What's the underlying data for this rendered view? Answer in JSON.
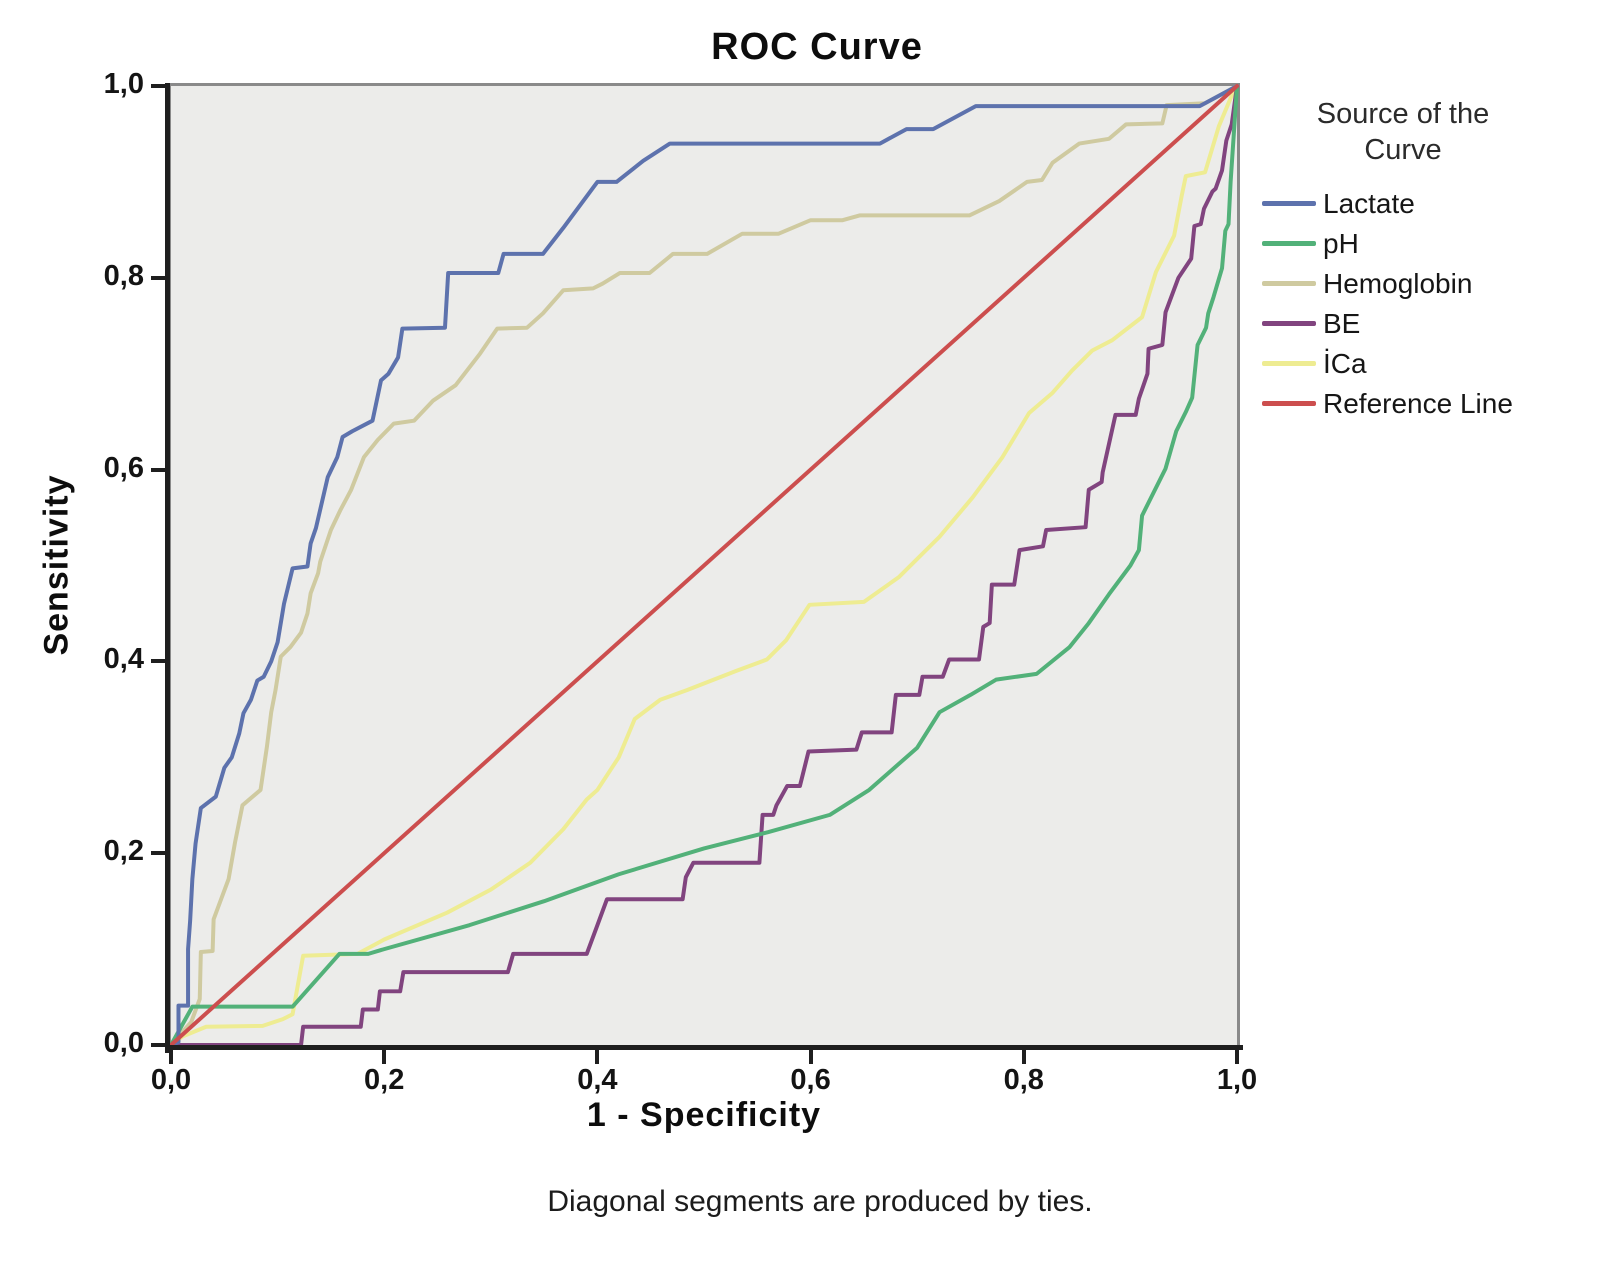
{
  "title": "ROC Curve",
  "caption": "Diagonal segments are produced by ties.",
  "legend": {
    "title_line1": "Source of the",
    "title_line2": "Curve"
  },
  "chart_data": {
    "type": "line",
    "title": "ROC Curve",
    "xlabel": "1 - Specificity",
    "ylabel": "Sensitivity",
    "xlim": [
      0,
      1
    ],
    "ylim": [
      0,
      1
    ],
    "grid": false,
    "legend_position": "right",
    "plot_background": "#ececea",
    "x_ticks": [
      {
        "value": 0.0,
        "label": "0,0"
      },
      {
        "value": 0.2,
        "label": "0,2"
      },
      {
        "value": 0.4,
        "label": "0,4"
      },
      {
        "value": 0.6,
        "label": "0,6"
      },
      {
        "value": 0.8,
        "label": "0,8"
      },
      {
        "value": 1.0,
        "label": "1,0"
      }
    ],
    "y_ticks": [
      {
        "value": 0.0,
        "label": "0,0"
      },
      {
        "value": 0.2,
        "label": "0,2"
      },
      {
        "value": 0.4,
        "label": "0,4"
      },
      {
        "value": 0.6,
        "label": "0,6"
      },
      {
        "value": 0.8,
        "label": "0,8"
      },
      {
        "value": 1.0,
        "label": "1,0"
      }
    ],
    "series": [
      {
        "name": "Lactate",
        "color": "#5d72ad",
        "points": [
          [
            0,
            0
          ],
          [
            0.007,
            0.003
          ],
          [
            0.007,
            0.041
          ],
          [
            0.016,
            0.041
          ],
          [
            0.016,
            0.1
          ],
          [
            0.018,
            0.13
          ],
          [
            0.02,
            0.173
          ],
          [
            0.023,
            0.21
          ],
          [
            0.028,
            0.247
          ],
          [
            0.042,
            0.259
          ],
          [
            0.05,
            0.289
          ],
          [
            0.057,
            0.3
          ],
          [
            0.064,
            0.325
          ],
          [
            0.068,
            0.346
          ],
          [
            0.075,
            0.36
          ],
          [
            0.081,
            0.38
          ],
          [
            0.087,
            0.384
          ],
          [
            0.094,
            0.4
          ],
          [
            0.1,
            0.42
          ],
          [
            0.106,
            0.46
          ],
          [
            0.114,
            0.497
          ],
          [
            0.128,
            0.499
          ],
          [
            0.131,
            0.523
          ],
          [
            0.136,
            0.539
          ],
          [
            0.147,
            0.592
          ],
          [
            0.156,
            0.613
          ],
          [
            0.161,
            0.634
          ],
          [
            0.17,
            0.64
          ],
          [
            0.189,
            0.651
          ],
          [
            0.197,
            0.693
          ],
          [
            0.204,
            0.7
          ],
          [
            0.213,
            0.717
          ],
          [
            0.217,
            0.747
          ],
          [
            0.257,
            0.748
          ],
          [
            0.26,
            0.805
          ],
          [
            0.307,
            0.805
          ],
          [
            0.312,
            0.825
          ],
          [
            0.349,
            0.825
          ],
          [
            0.368,
            0.852
          ],
          [
            0.396,
            0.894
          ],
          [
            0.4,
            0.9
          ],
          [
            0.418,
            0.9
          ],
          [
            0.443,
            0.922
          ],
          [
            0.468,
            0.94
          ],
          [
            0.665,
            0.94
          ],
          [
            0.69,
            0.955
          ],
          [
            0.715,
            0.955
          ],
          [
            0.755,
            0.979
          ],
          [
            0.965,
            0.979
          ],
          [
            1,
            1
          ]
        ]
      },
      {
        "name": "pH",
        "color": "#52b179",
        "points": [
          [
            0,
            0
          ],
          [
            0.02,
            0.04
          ],
          [
            0.114,
            0.04
          ],
          [
            0.158,
            0.095
          ],
          [
            0.185,
            0.095
          ],
          [
            0.2,
            0.1
          ],
          [
            0.28,
            0.125
          ],
          [
            0.35,
            0.15
          ],
          [
            0.42,
            0.178
          ],
          [
            0.5,
            0.205
          ],
          [
            0.56,
            0.222
          ],
          [
            0.618,
            0.24
          ],
          [
            0.655,
            0.266
          ],
          [
            0.7,
            0.31
          ],
          [
            0.721,
            0.347
          ],
          [
            0.75,
            0.365
          ],
          [
            0.774,
            0.381
          ],
          [
            0.812,
            0.387
          ],
          [
            0.843,
            0.415
          ],
          [
            0.861,
            0.44
          ],
          [
            0.88,
            0.47
          ],
          [
            0.9,
            0.5
          ],
          [
            0.908,
            0.516
          ],
          [
            0.911,
            0.552
          ],
          [
            0.933,
            0.601
          ],
          [
            0.943,
            0.64
          ],
          [
            0.952,
            0.66
          ],
          [
            0.958,
            0.675
          ],
          [
            0.963,
            0.73
          ],
          [
            0.971,
            0.748
          ],
          [
            0.973,
            0.763
          ],
          [
            0.978,
            0.78
          ],
          [
            0.986,
            0.81
          ],
          [
            0.989,
            0.849
          ],
          [
            0.992,
            0.856
          ],
          [
            0.994,
            0.9
          ],
          [
            0.997,
            0.95
          ],
          [
            1,
            1
          ]
        ]
      },
      {
        "name": "Hemoglobin",
        "color": "#cfcaa0",
        "points": [
          [
            0,
            0
          ],
          [
            0.019,
            0.024
          ],
          [
            0.027,
            0.048
          ],
          [
            0.028,
            0.097
          ],
          [
            0.039,
            0.098
          ],
          [
            0.04,
            0.131
          ],
          [
            0.054,
            0.173
          ],
          [
            0.06,
            0.211
          ],
          [
            0.067,
            0.25
          ],
          [
            0.084,
            0.266
          ],
          [
            0.09,
            0.311
          ],
          [
            0.094,
            0.347
          ],
          [
            0.098,
            0.37
          ],
          [
            0.103,
            0.405
          ],
          [
            0.112,
            0.415
          ],
          [
            0.122,
            0.43
          ],
          [
            0.128,
            0.45
          ],
          [
            0.131,
            0.471
          ],
          [
            0.138,
            0.492
          ],
          [
            0.14,
            0.504
          ],
          [
            0.15,
            0.537
          ],
          [
            0.159,
            0.558
          ],
          [
            0.169,
            0.579
          ],
          [
            0.181,
            0.613
          ],
          [
            0.194,
            0.631
          ],
          [
            0.209,
            0.648
          ],
          [
            0.228,
            0.651
          ],
          [
            0.246,
            0.672
          ],
          [
            0.267,
            0.688
          ],
          [
            0.29,
            0.721
          ],
          [
            0.306,
            0.747
          ],
          [
            0.334,
            0.748
          ],
          [
            0.349,
            0.763
          ],
          [
            0.368,
            0.787
          ],
          [
            0.396,
            0.789
          ],
          [
            0.405,
            0.794
          ],
          [
            0.421,
            0.805
          ],
          [
            0.449,
            0.805
          ],
          [
            0.471,
            0.825
          ],
          [
            0.503,
            0.825
          ],
          [
            0.536,
            0.846
          ],
          [
            0.57,
            0.846
          ],
          [
            0.6,
            0.86
          ],
          [
            0.63,
            0.86
          ],
          [
            0.646,
            0.865
          ],
          [
            0.749,
            0.865
          ],
          [
            0.777,
            0.88
          ],
          [
            0.803,
            0.9
          ],
          [
            0.817,
            0.902
          ],
          [
            0.827,
            0.92
          ],
          [
            0.852,
            0.94
          ],
          [
            0.88,
            0.945
          ],
          [
            0.896,
            0.96
          ],
          [
            0.93,
            0.961
          ],
          [
            0.934,
            0.98
          ],
          [
            0.97,
            0.982
          ],
          [
            1,
            1
          ]
        ]
      },
      {
        "name": "BE",
        "color": "#81447f",
        "points": [
          [
            0,
            0
          ],
          [
            0.122,
            0
          ],
          [
            0.124,
            0.019
          ],
          [
            0.178,
            0.019
          ],
          [
            0.18,
            0.037
          ],
          [
            0.194,
            0.037
          ],
          [
            0.196,
            0.056
          ],
          [
            0.215,
            0.056
          ],
          [
            0.218,
            0.076
          ],
          [
            0.316,
            0.076
          ],
          [
            0.321,
            0.095
          ],
          [
            0.39,
            0.095
          ],
          [
            0.4,
            0.125
          ],
          [
            0.409,
            0.152
          ],
          [
            0.48,
            0.152
          ],
          [
            0.483,
            0.175
          ],
          [
            0.49,
            0.19
          ],
          [
            0.552,
            0.19
          ],
          [
            0.555,
            0.24
          ],
          [
            0.565,
            0.24
          ],
          [
            0.568,
            0.25
          ],
          [
            0.578,
            0.27
          ],
          [
            0.59,
            0.27
          ],
          [
            0.598,
            0.306
          ],
          [
            0.643,
            0.308
          ],
          [
            0.648,
            0.326
          ],
          [
            0.676,
            0.326
          ],
          [
            0.68,
            0.365
          ],
          [
            0.702,
            0.365
          ],
          [
            0.705,
            0.384
          ],
          [
            0.724,
            0.384
          ],
          [
            0.73,
            0.402
          ],
          [
            0.758,
            0.402
          ],
          [
            0.762,
            0.436
          ],
          [
            0.768,
            0.44
          ],
          [
            0.77,
            0.48
          ],
          [
            0.791,
            0.48
          ],
          [
            0.796,
            0.516
          ],
          [
            0.818,
            0.52
          ],
          [
            0.821,
            0.537
          ],
          [
            0.858,
            0.54
          ],
          [
            0.861,
            0.579
          ],
          [
            0.873,
            0.587
          ],
          [
            0.874,
            0.597
          ],
          [
            0.886,
            0.657
          ],
          [
            0.905,
            0.657
          ],
          [
            0.908,
            0.674
          ],
          [
            0.916,
            0.7
          ],
          [
            0.917,
            0.726
          ],
          [
            0.93,
            0.73
          ],
          [
            0.933,
            0.764
          ],
          [
            0.945,
            0.8
          ],
          [
            0.957,
            0.82
          ],
          [
            0.96,
            0.854
          ],
          [
            0.966,
            0.856
          ],
          [
            0.969,
            0.872
          ],
          [
            0.977,
            0.89
          ],
          [
            0.98,
            0.893
          ],
          [
            0.986,
            0.912
          ],
          [
            0.99,
            0.943
          ],
          [
            0.995,
            0.96
          ],
          [
            1,
            1
          ]
        ]
      },
      {
        "name": "İCa",
        "color": "#eeec92",
        "points": [
          [
            0,
            0
          ],
          [
            0.011,
            0.009
          ],
          [
            0.033,
            0.019
          ],
          [
            0.086,
            0.02
          ],
          [
            0.105,
            0.027
          ],
          [
            0.114,
            0.032
          ],
          [
            0.124,
            0.093
          ],
          [
            0.175,
            0.095
          ],
          [
            0.2,
            0.11
          ],
          [
            0.259,
            0.138
          ],
          [
            0.3,
            0.162
          ],
          [
            0.337,
            0.19
          ],
          [
            0.368,
            0.225
          ],
          [
            0.39,
            0.256
          ],
          [
            0.4,
            0.266
          ],
          [
            0.42,
            0.3
          ],
          [
            0.435,
            0.34
          ],
          [
            0.459,
            0.36
          ],
          [
            0.484,
            0.37
          ],
          [
            0.53,
            0.39
          ],
          [
            0.559,
            0.402
          ],
          [
            0.577,
            0.422
          ],
          [
            0.599,
            0.459
          ],
          [
            0.65,
            0.462
          ],
          [
            0.683,
            0.488
          ],
          [
            0.721,
            0.53
          ],
          [
            0.752,
            0.571
          ],
          [
            0.78,
            0.613
          ],
          [
            0.805,
            0.659
          ],
          [
            0.827,
            0.68
          ],
          [
            0.845,
            0.703
          ],
          [
            0.864,
            0.724
          ],
          [
            0.883,
            0.735
          ],
          [
            0.911,
            0.759
          ],
          [
            0.924,
            0.806
          ],
          [
            0.941,
            0.844
          ],
          [
            0.948,
            0.885
          ],
          [
            0.952,
            0.906
          ],
          [
            0.97,
            0.91
          ],
          [
            0.983,
            0.958
          ],
          [
            0.995,
            0.99
          ],
          [
            1,
            1
          ]
        ]
      },
      {
        "name": "Reference Line",
        "color": "#cc4e4e",
        "points": [
          [
            0,
            0
          ],
          [
            1,
            1
          ]
        ]
      }
    ]
  }
}
